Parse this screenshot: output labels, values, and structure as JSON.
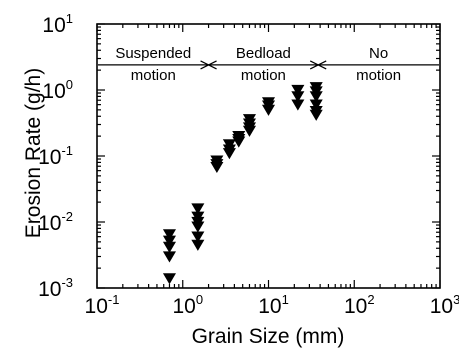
{
  "chart_data": {
    "type": "scatter",
    "title": "",
    "xlabel": "Grain Size (mm)",
    "ylabel": "Erosion Rate (g/h)",
    "xscale": "log",
    "yscale": "log",
    "xlim": [
      0.1,
      1000
    ],
    "ylim": [
      0.001,
      10
    ],
    "grid": false,
    "legend": "none",
    "marker": "filled-down-triangle",
    "marker_color": "#000000",
    "x_ticks": [
      {
        "base": "10",
        "exp": "-1",
        "value": 0.1
      },
      {
        "base": "10",
        "exp": "0",
        "value": 1
      },
      {
        "base": "10",
        "exp": "1",
        "value": 10
      },
      {
        "base": "10",
        "exp": "2",
        "value": 100
      },
      {
        "base": "10",
        "exp": "3",
        "value": 1000
      }
    ],
    "y_ticks": [
      {
        "base": "10",
        "exp": "-3",
        "value": 0.001
      },
      {
        "base": "10",
        "exp": "-2",
        "value": 0.01
      },
      {
        "base": "10",
        "exp": "-1",
        "value": 0.1
      },
      {
        "base": "10",
        "exp": "0",
        "value": 1
      },
      {
        "base": "10",
        "exp": "1",
        "value": 10
      }
    ],
    "regions": [
      {
        "lines": [
          "Suspended",
          "motion"
        ],
        "x_from": 0.1,
        "x_to": 2.0
      },
      {
        "lines": [
          "Bedload",
          "motion"
        ],
        "x_from": 2.0,
        "x_to": 38
      },
      {
        "lines": [
          "No",
          "motion"
        ],
        "x_from": 38,
        "x_to": 1000
      }
    ],
    "region_arrow_y": 2.4,
    "points": [
      {
        "x": 0.7,
        "y": 0.0065
      },
      {
        "x": 0.7,
        "y": 0.0052
      },
      {
        "x": 0.7,
        "y": 0.0042
      },
      {
        "x": 0.7,
        "y": 0.003
      },
      {
        "x": 0.7,
        "y": 0.0014
      },
      {
        "x": 1.5,
        "y": 0.016
      },
      {
        "x": 1.5,
        "y": 0.012
      },
      {
        "x": 1.5,
        "y": 0.01
      },
      {
        "x": 1.5,
        "y": 0.0085
      },
      {
        "x": 1.5,
        "y": 0.006
      },
      {
        "x": 1.5,
        "y": 0.0045
      },
      {
        "x": 2.5,
        "y": 0.085
      },
      {
        "x": 2.5,
        "y": 0.075
      },
      {
        "x": 2.5,
        "y": 0.068
      },
      {
        "x": 3.5,
        "y": 0.15
      },
      {
        "x": 3.5,
        "y": 0.125
      },
      {
        "x": 3.5,
        "y": 0.11
      },
      {
        "x": 4.5,
        "y": 0.2
      },
      {
        "x": 4.5,
        "y": 0.18
      },
      {
        "x": 4.5,
        "y": 0.165
      },
      {
        "x": 6.0,
        "y": 0.36
      },
      {
        "x": 6.0,
        "y": 0.31
      },
      {
        "x": 6.0,
        "y": 0.27
      },
      {
        "x": 6.0,
        "y": 0.24
      },
      {
        "x": 10,
        "y": 0.65
      },
      {
        "x": 10,
        "y": 0.58
      },
      {
        "x": 10,
        "y": 0.5
      },
      {
        "x": 22,
        "y": 1.0
      },
      {
        "x": 22,
        "y": 0.8
      },
      {
        "x": 22,
        "y": 0.6
      },
      {
        "x": 36,
        "y": 1.1
      },
      {
        "x": 36,
        "y": 0.95
      },
      {
        "x": 36,
        "y": 0.8
      },
      {
        "x": 36,
        "y": 0.6
      },
      {
        "x": 36,
        "y": 0.48
      },
      {
        "x": 36,
        "y": 0.42
      }
    ]
  }
}
